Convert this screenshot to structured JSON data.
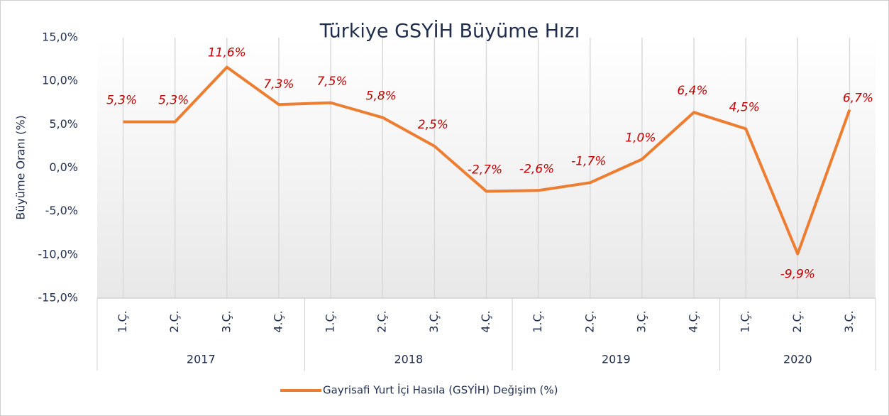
{
  "chart_data": {
    "type": "line",
    "title": "Türkiye GSYİH Büyüme Hızı",
    "y_label": "Büyüme Oranı (%)",
    "categories": [
      "1.Ç.",
      "2.Ç.",
      "3.Ç.",
      "4.Ç.",
      "1.Ç.",
      "2.Ç.",
      "3.Ç.",
      "4.Ç.",
      "1.Ç.",
      "2.Ç.",
      "3.Ç.",
      "4.Ç.",
      "1.Ç.",
      "2.Ç.",
      "3.Ç."
    ],
    "groups": [
      {
        "label": "2017",
        "size": 4
      },
      {
        "label": "2018",
        "size": 4
      },
      {
        "label": "2019",
        "size": 4
      },
      {
        "label": "2020",
        "size": 3
      }
    ],
    "series": [
      {
        "name": "Gayrisafi Yurt İçi Hasıla (GSYİH) Değişim (%)",
        "color": "#ed7d31",
        "values": [
          5.3,
          5.3,
          11.6,
          7.3,
          7.5,
          5.8,
          2.5,
          -2.7,
          -2.6,
          -1.7,
          1.0,
          6.4,
          4.5,
          -9.9,
          6.7
        ],
        "value_labels": [
          "5,3%",
          "5,3%",
          "11,6%",
          "7,3%",
          "7,5%",
          "5,8%",
          "2,5%",
          "-2,7%",
          "-2,6%",
          "-1,7%",
          "1,0%",
          "6,4%",
          "4,5%",
          "-9,9%",
          "6,7%"
        ]
      }
    ],
    "ylim": [
      -15,
      15
    ],
    "yticks": [
      {
        "value": -15,
        "label": "-15,0%"
      },
      {
        "value": -10,
        "label": "-10,0%"
      },
      {
        "value": -5,
        "label": "-5,0%"
      },
      {
        "value": 0,
        "label": "0,0%"
      },
      {
        "value": 5,
        "label": "5,0%"
      },
      {
        "value": 10,
        "label": "10,0%"
      },
      {
        "value": 15,
        "label": "15,0%"
      }
    ],
    "legend": "bottom"
  }
}
